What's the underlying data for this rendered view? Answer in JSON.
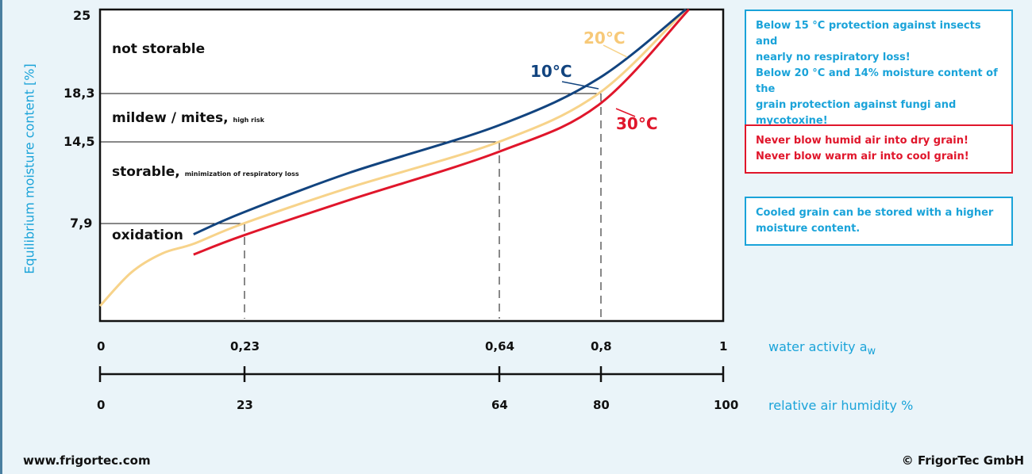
{
  "chart_data": {
    "type": "line",
    "ylabel": "Equilibrium moisture content [%]",
    "yticks": [
      "25",
      "18,3",
      "14,5",
      "7,9"
    ],
    "xlim": [
      0,
      1
    ],
    "x_axis_1": {
      "title": "water activity a",
      "title_sub": "w",
      "ticks": [
        "0",
        "0,23",
        "0,64",
        "0,8",
        "1"
      ]
    },
    "x_axis_2": {
      "title": "relative air humidity %",
      "ticks": [
        "0",
        "23",
        "64",
        "80",
        "100"
      ]
    },
    "zones": [
      {
        "label": "not storable",
        "note": ""
      },
      {
        "label": "mildew / mites,",
        "note": "high risk"
      },
      {
        "label": "storable,",
        "note": "minimization of respiratory loss"
      },
      {
        "label": "oxidation",
        "note": ""
      }
    ],
    "series": [
      {
        "name": "10°C",
        "color": "#12447f",
        "x": [
          0.15,
          0.23,
          0.4,
          0.64,
          0.8,
          0.94
        ],
        "y": [
          7.0,
          8.8,
          12.0,
          15.8,
          19.5,
          25
        ]
      },
      {
        "name": "20°C",
        "color": "#f7d38a",
        "x": [
          0.0,
          0.05,
          0.1,
          0.15,
          0.23,
          0.4,
          0.64,
          0.8,
          0.94
        ],
        "y": [
          1.0,
          3.8,
          5.4,
          6.2,
          7.9,
          10.8,
          14.5,
          18.3,
          25
        ]
      },
      {
        "name": "30°C",
        "color": "#e0162b",
        "x": [
          0.15,
          0.23,
          0.4,
          0.64,
          0.8,
          0.945
        ],
        "y": [
          5.3,
          6.9,
          9.8,
          13.7,
          17.4,
          25
        ]
      }
    ]
  },
  "info": {
    "box1": [
      "Below 15 °C protection against insects and",
      "nearly no respiratory loss!",
      "Below 20 °C and 14% moisture content of the",
      "grain protection against fungi and mycotoxine!"
    ],
    "box2": [
      "Never  blow  humid air  into dry grain!",
      "Never blow warm air into cool grain!"
    ],
    "box3": [
      "Cooled grain can be stored with a higher",
      "moisture content."
    ]
  },
  "footer": {
    "left": "www.frigortec.com",
    "right": "© FrigorTec GmbH"
  },
  "colors": {
    "accent_blue": "#1aa3d9",
    "warning_red": "#e0162b"
  }
}
